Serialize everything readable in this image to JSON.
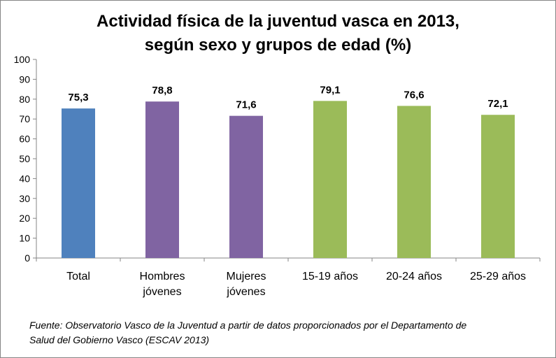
{
  "chart_data": {
    "type": "bar",
    "title_lines": [
      "Actividad física de la juventud vasca en 2013,",
      "según sexo y grupos de edad (%)"
    ],
    "categories": [
      [
        "Total"
      ],
      [
        "Hombres",
        "jóvenes"
      ],
      [
        "Mujeres",
        "jóvenes"
      ],
      [
        "15-19 años"
      ],
      [
        "20-24 años"
      ],
      [
        "25-29 años"
      ]
    ],
    "values": [
      75.3,
      78.8,
      71.6,
      79.1,
      76.6,
      72.1
    ],
    "value_labels": [
      "75,3",
      "78,8",
      "71,6",
      "79,1",
      "76,6",
      "72,1"
    ],
    "bar_colors": [
      "#4F81BD",
      "#8064A2",
      "#8064A2",
      "#9BBB59",
      "#9BBB59",
      "#9BBB59"
    ],
    "ylim": [
      0,
      100
    ],
    "y_ticks": [
      0,
      10,
      20,
      30,
      40,
      50,
      60,
      70,
      80,
      90,
      100
    ],
    "grid": false,
    "xlabel": "",
    "ylabel": ""
  },
  "source_lines": [
    "Fuente: Observatorio Vasco de la Juventud a partir de datos proporcionados por el Departamento de",
    "Salud del Gobierno Vasco (ESCAV 2013)"
  ]
}
